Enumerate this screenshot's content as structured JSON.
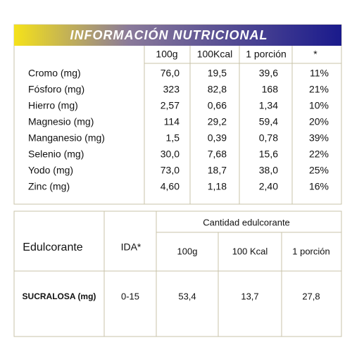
{
  "header": {
    "title": "INFORMACIÓN NUTRICIONAL"
  },
  "table1": {
    "columns": [
      "100g",
      "100Kcal",
      "1 porción",
      "*"
    ],
    "rows": [
      [
        "Cromo (mg)",
        "76,0",
        "19,5",
        "39,6",
        "11%"
      ],
      [
        "Fósforo (mg)",
        "323",
        "82,8",
        "168",
        "21%"
      ],
      [
        "Hierro (mg)",
        "2,57",
        "0,66",
        "1,34",
        "10%"
      ],
      [
        "Magnesio (mg)",
        "114",
        "29,2",
        "59,4",
        "20%"
      ],
      [
        "Manganesio (mg)",
        "1,5",
        "0,39",
        "0,78",
        "39%"
      ],
      [
        "Selenio (mg)",
        "30,0",
        "7,68",
        "15,6",
        "22%"
      ],
      [
        "Yodo (mg)",
        "73,0",
        "18,7",
        "38,0",
        "25%"
      ],
      [
        "Zinc (mg)",
        "4,60",
        "1,18",
        "2,40",
        "16%"
      ]
    ]
  },
  "table2": {
    "header": [
      "Edulcorante",
      "IDA*"
    ],
    "group": "Cantidad edulcorante",
    "columns": [
      "100g",
      "100 Kcal",
      "1 porción"
    ],
    "rows": [
      [
        "SUCRALOSA (mg)",
        "0-15",
        "53,4",
        "13,7",
        "27,8"
      ]
    ]
  }
}
